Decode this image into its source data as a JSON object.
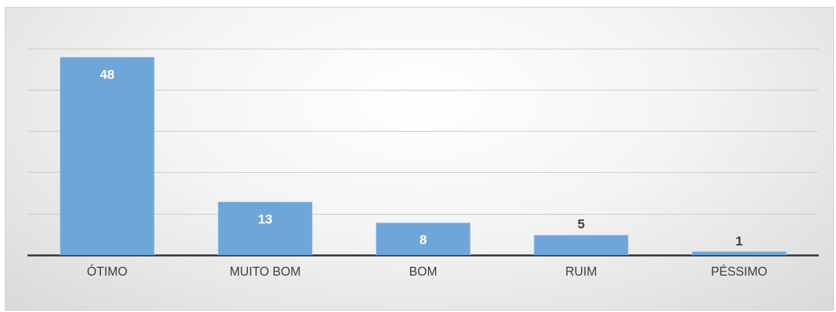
{
  "chart_data": {
    "type": "bar",
    "categories": [
      "ÓTIMO",
      "MUITO BOM",
      "BOM",
      "RUIM",
      "PÉSSIMO"
    ],
    "values": [
      48,
      13,
      8,
      5,
      1
    ],
    "color": "#6fa6da",
    "ylim": [
      0,
      50
    ],
    "yticks": [
      {
        "value": 0,
        "label": null
      },
      {
        "value": 10,
        "label": null
      },
      {
        "value": 20,
        "label": null
      },
      {
        "value": 30,
        "label": null
      },
      {
        "value": 40,
        "label": null
      },
      {
        "value": 50,
        "label": null
      }
    ],
    "grid": "y",
    "tick_labels": "x",
    "data_labels": true,
    "legend": false
  }
}
